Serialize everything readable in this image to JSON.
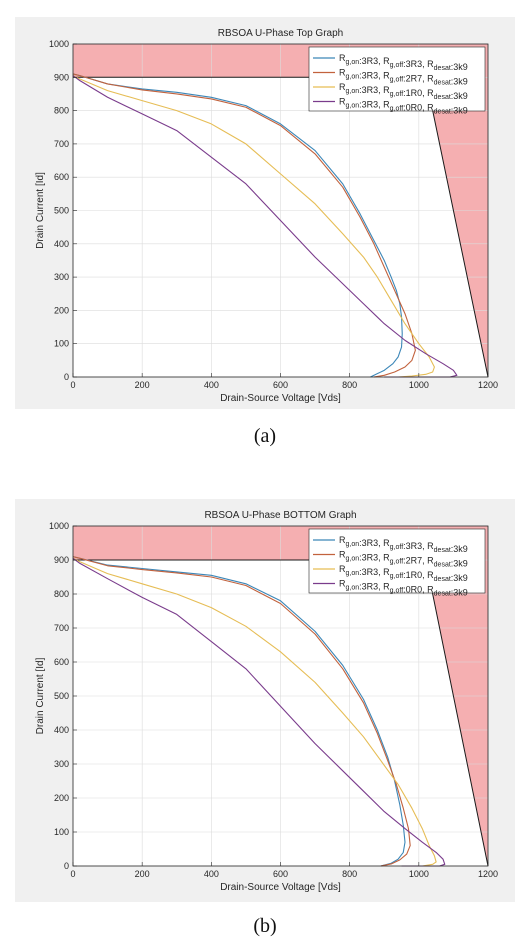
{
  "captions": {
    "a": "(a)",
    "b": "(b)"
  },
  "chart_data": [
    {
      "type": "line",
      "title": "RBSOA U-Phase Top Graph",
      "xlabel": "Drain-Source Voltage [Vds]",
      "ylabel": "Drain Current [Id]",
      "xlim": [
        0,
        1200
      ],
      "ylim": [
        0,
        1000
      ],
      "xticks": [
        "0",
        "200",
        "400",
        "600",
        "800",
        "1000",
        "1200"
      ],
      "yticks": [
        "0",
        "100",
        "200",
        "300",
        "400",
        "500",
        "600",
        "700",
        "800",
        "900",
        "1000"
      ],
      "grid": true,
      "legend_position": "top-right",
      "soa_boundary": {
        "x": [
          0,
          1020,
          1200
        ],
        "y": [
          900,
          900,
          0
        ],
        "fill": "#f4a6a8"
      },
      "series": [
        {
          "name": "Rg,on:3R3, Rg,off:3R3, Rdesat:3k9",
          "color": "#3c87b8",
          "x": [
            0,
            20,
            100,
            200,
            300,
            400,
            500,
            600,
            700,
            780,
            830,
            870,
            900,
            920,
            935,
            945,
            950,
            952,
            950,
            940,
            925,
            900,
            880,
            860
          ],
          "y": [
            910,
            905,
            880,
            865,
            855,
            840,
            815,
            760,
            680,
            580,
            490,
            410,
            350,
            300,
            260,
            220,
            180,
            130,
            90,
            60,
            40,
            20,
            10,
            0
          ]
        },
        {
          "name": "Rg,on:3R3, Rg,off:2R7, Rdesat:3k9",
          "color": "#c2623d",
          "x": [
            0,
            20,
            100,
            200,
            300,
            400,
            500,
            600,
            700,
            780,
            830,
            870,
            900,
            930,
            960,
            980,
            990,
            980,
            960,
            930,
            900,
            870
          ],
          "y": [
            910,
            905,
            880,
            862,
            850,
            835,
            810,
            755,
            670,
            570,
            480,
            400,
            330,
            260,
            190,
            130,
            80,
            50,
            30,
            15,
            5,
            0
          ]
        },
        {
          "name": "Rg,on:3R3, Rg,off:1R0, Rdesat:3k9",
          "color": "#e6bd55",
          "x": [
            0,
            20,
            100,
            200,
            300,
            400,
            500,
            600,
            700,
            780,
            840,
            880,
            920,
            960,
            1000,
            1030,
            1045,
            1040,
            1020,
            980,
            940,
            900
          ],
          "y": [
            905,
            895,
            860,
            830,
            800,
            760,
            700,
            610,
            520,
            430,
            360,
            300,
            230,
            160,
            100,
            60,
            30,
            15,
            8,
            3,
            0,
            0
          ]
        },
        {
          "name": "Rg,on:3R3, Rg,off:0R0, Rdesat:3k9",
          "color": "#7a3c8c",
          "x": [
            0,
            20,
            100,
            200,
            300,
            400,
            500,
            600,
            700,
            780,
            840,
            900,
            960,
            1020,
            1070,
            1100,
            1110,
            1090,
            1050,
            1000,
            950,
            900
          ],
          "y": [
            905,
            890,
            840,
            790,
            740,
            660,
            580,
            470,
            360,
            280,
            220,
            160,
            110,
            70,
            40,
            20,
            5,
            0,
            0,
            0,
            0,
            0
          ]
        }
      ]
    },
    {
      "type": "line",
      "title": "RBSOA U-Phase BOTTOM Graph",
      "xlabel": "Drain-Source Voltage [Vds]",
      "ylabel": "Drain Current [Id]",
      "xlim": [
        0,
        1200
      ],
      "ylim": [
        0,
        1000
      ],
      "xticks": [
        "0",
        "200",
        "400",
        "600",
        "800",
        "1000",
        "1200"
      ],
      "yticks": [
        "0",
        "100",
        "200",
        "300",
        "400",
        "500",
        "600",
        "700",
        "800",
        "900",
        "1000"
      ],
      "grid": true,
      "legend_position": "top-right",
      "soa_boundary": {
        "x": [
          0,
          1020,
          1200
        ],
        "y": [
          900,
          900,
          0
        ],
        "fill": "#f4a6a8"
      },
      "series": [
        {
          "name": "Rg,on:3R3, Rg,off:3R3, Rdesat:3k9",
          "color": "#3c87b8",
          "x": [
            0,
            20,
            100,
            200,
            300,
            400,
            500,
            600,
            700,
            780,
            840,
            880,
            910,
            930,
            945,
            955,
            960,
            955,
            940,
            920,
            890
          ],
          "y": [
            910,
            905,
            885,
            875,
            865,
            855,
            830,
            780,
            690,
            590,
            490,
            400,
            320,
            250,
            180,
            120,
            70,
            40,
            20,
            8,
            0
          ]
        },
        {
          "name": "Rg,on:3R3, Rg,off:2R7, Rdesat:3k9",
          "color": "#c2623d",
          "x": [
            0,
            20,
            100,
            200,
            300,
            400,
            500,
            600,
            700,
            780,
            840,
            880,
            910,
            935,
            955,
            970,
            975,
            965,
            945,
            920,
            890
          ],
          "y": [
            910,
            905,
            883,
            872,
            862,
            850,
            825,
            772,
            682,
            580,
            480,
            390,
            310,
            240,
            170,
            110,
            60,
            35,
            18,
            6,
            0
          ]
        },
        {
          "name": "Rg,on:3R3, Rg,off:1R0, Rdesat:3k9",
          "color": "#e6bd55",
          "x": [
            0,
            20,
            100,
            200,
            300,
            400,
            500,
            600,
            700,
            780,
            840,
            890,
            940,
            980,
            1010,
            1030,
            1045,
            1050,
            1040,
            1010,
            970
          ],
          "y": [
            905,
            895,
            860,
            830,
            800,
            760,
            705,
            630,
            540,
            450,
            380,
            310,
            240,
            170,
            110,
            60,
            30,
            12,
            5,
            0,
            0
          ]
        },
        {
          "name": "Rg,on:3R3, Rg,off:0R0, Rdesat:3k9",
          "color": "#7a3c8c",
          "x": [
            0,
            20,
            100,
            200,
            300,
            400,
            500,
            600,
            700,
            780,
            840,
            900,
            960,
            1010,
            1050,
            1070,
            1075,
            1060,
            1030,
            990,
            950
          ],
          "y": [
            905,
            890,
            845,
            790,
            740,
            660,
            580,
            470,
            360,
            280,
            220,
            160,
            110,
            70,
            40,
            20,
            5,
            0,
            0,
            0,
            0
          ]
        }
      ]
    }
  ]
}
